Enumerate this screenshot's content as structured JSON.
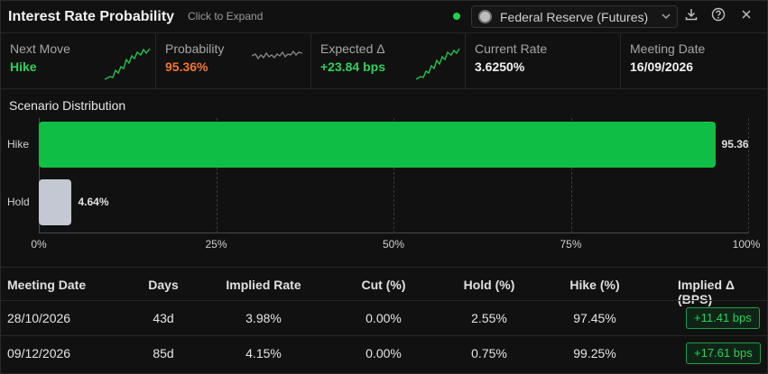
{
  "header": {
    "title": "Interest Rate Probability",
    "expand_label": "Click to Expand",
    "source_label": "Federal Reserve (Futures)",
    "live_color": "#1fcf4f"
  },
  "icons": {
    "download": "download-icon",
    "help": "help-icon",
    "close": "close-icon",
    "dropdown": "chevron-down-icon",
    "seal": "federal-reserve-seal-icon"
  },
  "kpis": [
    {
      "label": "Next Move",
      "value": "Hike",
      "color": "#2fd05a"
    },
    {
      "label": "Probability",
      "value": "95.36%",
      "color": "#f2762e"
    },
    {
      "label": "Expected Δ",
      "value": "+23.84 bps",
      "color": "#2fd05a"
    },
    {
      "label": "Current Rate",
      "value": "3.6250%",
      "color": "#f2f2f2"
    },
    {
      "label": "Meeting Date",
      "value": "16/09/2026",
      "color": "#f2f2f2"
    }
  ],
  "scenario": {
    "title": "Scenario Distribution"
  },
  "chart_data": {
    "type": "bar",
    "orientation": "horizontal",
    "categories": [
      "Hike",
      "Hold"
    ],
    "values": [
      95.36,
      4.64
    ],
    "value_labels": [
      "95.36",
      "4.64%"
    ],
    "colors": [
      "#0fbf45",
      "#c3c8d2"
    ],
    "xlim": [
      0,
      100
    ],
    "x_ticks": [
      "0%",
      "25%",
      "50%",
      "75%",
      "100%"
    ],
    "grid": true
  },
  "table": {
    "headers": [
      "Meeting Date",
      "Days",
      "Implied Rate",
      "Cut (%)",
      "Hold (%)",
      "Hike (%)",
      "Implied Δ (BPS)"
    ],
    "rows": [
      {
        "date": "28/10/2026",
        "days": "43d",
        "rate": "3.98%",
        "cut": "0.00%",
        "hold": "2.55%",
        "hike": "97.45%",
        "delta": "+11.41 bps"
      },
      {
        "date": "09/12/2026",
        "days": "85d",
        "rate": "4.15%",
        "cut": "0.00%",
        "hold": "0.75%",
        "hike": "99.25%",
        "delta": "+17.61 bps"
      }
    ]
  }
}
